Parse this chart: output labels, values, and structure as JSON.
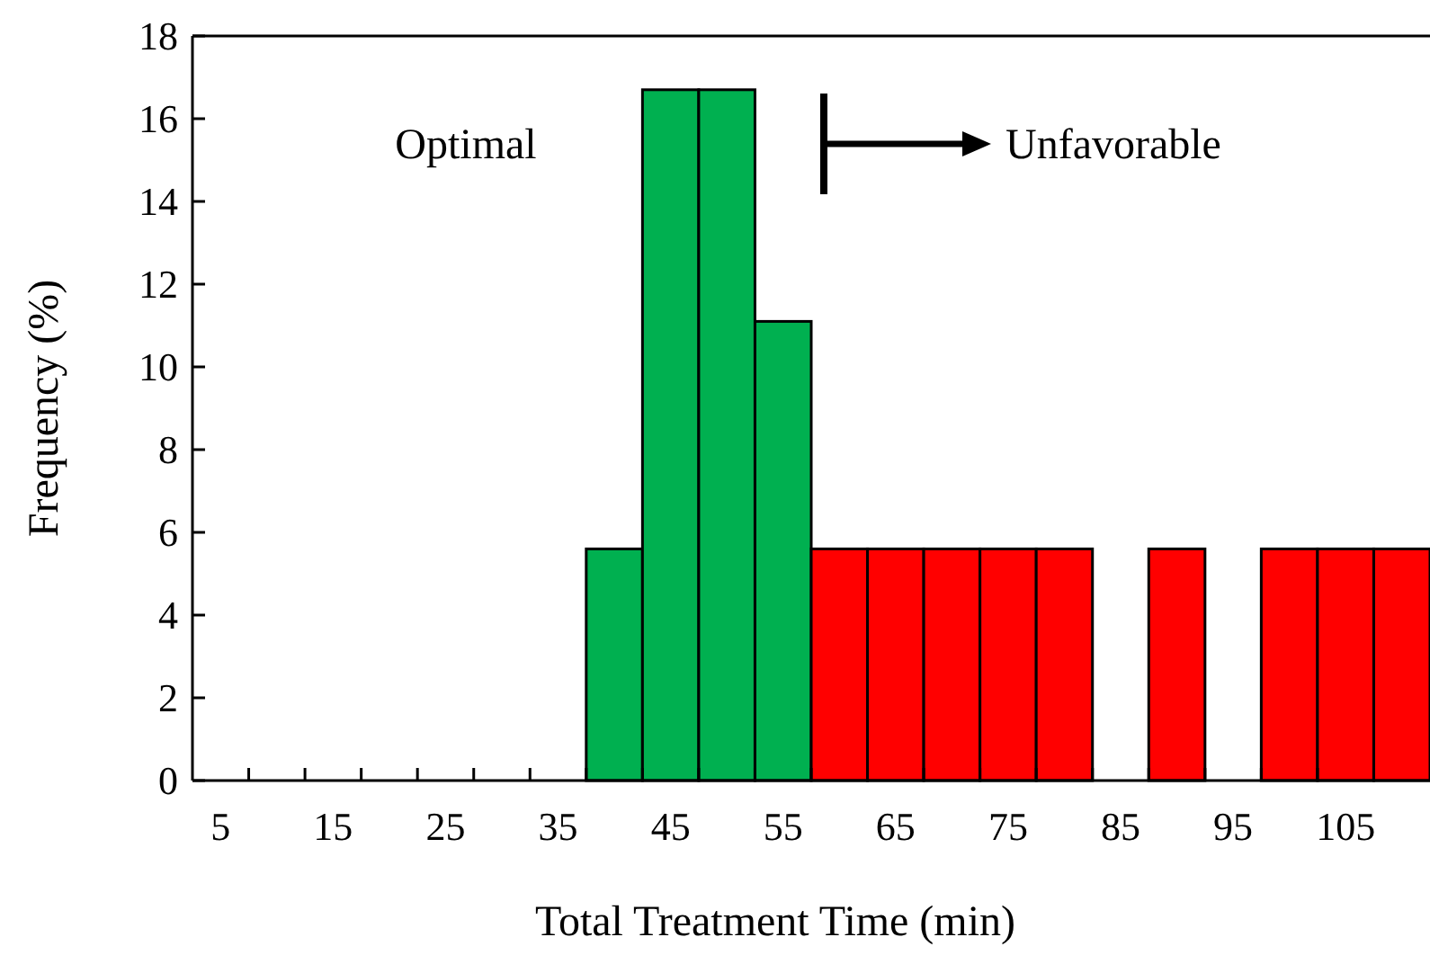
{
  "chart_data": {
    "type": "bar",
    "xlabel": "Total Treatment Time (min)",
    "ylabel": "Frequency (%)",
    "categories": [
      "5",
      null,
      "15",
      null,
      "25",
      null,
      "35",
      null,
      "45",
      null,
      "55",
      null,
      "65",
      null,
      "75",
      null,
      "85",
      null,
      "95",
      null,
      "105",
      null
    ],
    "values": [
      0,
      0,
      0,
      0,
      0,
      0,
      0,
      5.6,
      16.7,
      16.7,
      11.1,
      5.6,
      5.6,
      5.6,
      5.6,
      5.6,
      0,
      5.6,
      0,
      5.6,
      5.6,
      5.6
    ],
    "colors": [
      "#00b050",
      "#00b050",
      "#00b050",
      "#00b050",
      "#00b050",
      "#00b050",
      "#00b050",
      "#00b050",
      "#00b050",
      "#00b050",
      "#00b050",
      "#ff0000",
      "#ff0000",
      "#ff0000",
      "#ff0000",
      "#ff0000",
      "#ff0000",
      "#ff0000",
      "#ff0000",
      "#ff0000",
      "#ff0000",
      "#ff0000"
    ],
    "ylim": [
      0,
      18
    ],
    "yticks": [
      0,
      2,
      4,
      6,
      8,
      10,
      12,
      14,
      16,
      18
    ],
    "grid": false,
    "annotations": [
      "Optimal",
      "Unfavorable"
    ]
  }
}
